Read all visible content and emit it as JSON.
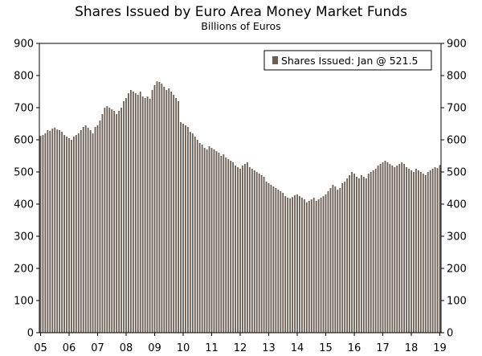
{
  "chart_data": {
    "type": "bar",
    "title": "Shares Issued by Euro Area Money Market Funds",
    "subtitle": "Billions of Euros",
    "ylim": [
      0,
      900
    ],
    "yticks": [
      0,
      100,
      200,
      300,
      400,
      500,
      600,
      700,
      800,
      900
    ],
    "xticks": [
      "05",
      "06",
      "07",
      "08",
      "09",
      "10",
      "11",
      "12",
      "13",
      "14",
      "15",
      "16",
      "17",
      "18",
      "19"
    ],
    "start": "2005-01",
    "end": "2019-01",
    "legend": "Shares Issued: Jan @ 521.5",
    "legend_position": "top-right",
    "colors": {
      "bar": "#6b5e54",
      "axis": "#000000",
      "legend_border": "#000000"
    },
    "series": [
      {
        "name": "Shares Issued",
        "values": [
          612,
          615,
          620,
          630,
          628,
          635,
          638,
          632,
          630,
          625,
          615,
          610,
          605,
          600,
          610,
          615,
          620,
          630,
          640,
          645,
          638,
          630,
          620,
          640,
          645,
          660,
          680,
          700,
          705,
          700,
          695,
          690,
          680,
          690,
          700,
          720,
          730,
          745,
          755,
          750,
          745,
          740,
          750,
          735,
          730,
          735,
          728,
          755,
          770,
          782,
          780,
          775,
          765,
          755,
          760,
          750,
          740,
          730,
          720,
          655,
          650,
          645,
          640,
          625,
          620,
          610,
          600,
          590,
          585,
          575,
          570,
          580,
          575,
          570,
          565,
          560,
          550,
          555,
          545,
          540,
          535,
          530,
          520,
          515,
          510,
          520,
          525,
          530,
          515,
          510,
          505,
          500,
          495,
          490,
          485,
          470,
          465,
          460,
          455,
          450,
          445,
          440,
          435,
          425,
          420,
          418,
          422,
          428,
          430,
          425,
          420,
          415,
          405,
          410,
          415,
          420,
          410,
          415,
          420,
          425,
          430,
          440,
          450,
          460,
          455,
          445,
          450,
          465,
          470,
          480,
          490,
          500,
          495,
          485,
          480,
          490,
          485,
          480,
          495,
          500,
          505,
          510,
          520,
          525,
          530,
          535,
          530,
          525,
          520,
          515,
          520,
          525,
          530,
          525,
          515,
          510,
          505,
          500,
          510,
          505,
          500,
          495,
          490,
          500,
          505,
          510,
          515,
          512,
          521.5
        ]
      }
    ]
  }
}
